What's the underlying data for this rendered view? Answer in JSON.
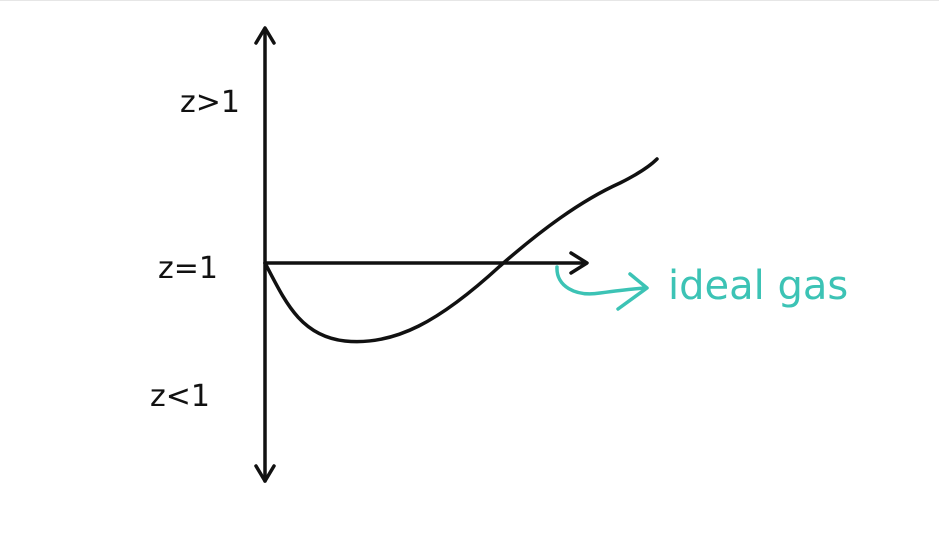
{
  "diagram": {
    "labels": {
      "upper": "z>1",
      "middle": "z=1",
      "lower": "z<1"
    },
    "annotation": {
      "text": "ideal gas"
    },
    "colors": {
      "ink": "#111111",
      "annotation": "#3cc3b5",
      "background": "#ffffff"
    }
  }
}
